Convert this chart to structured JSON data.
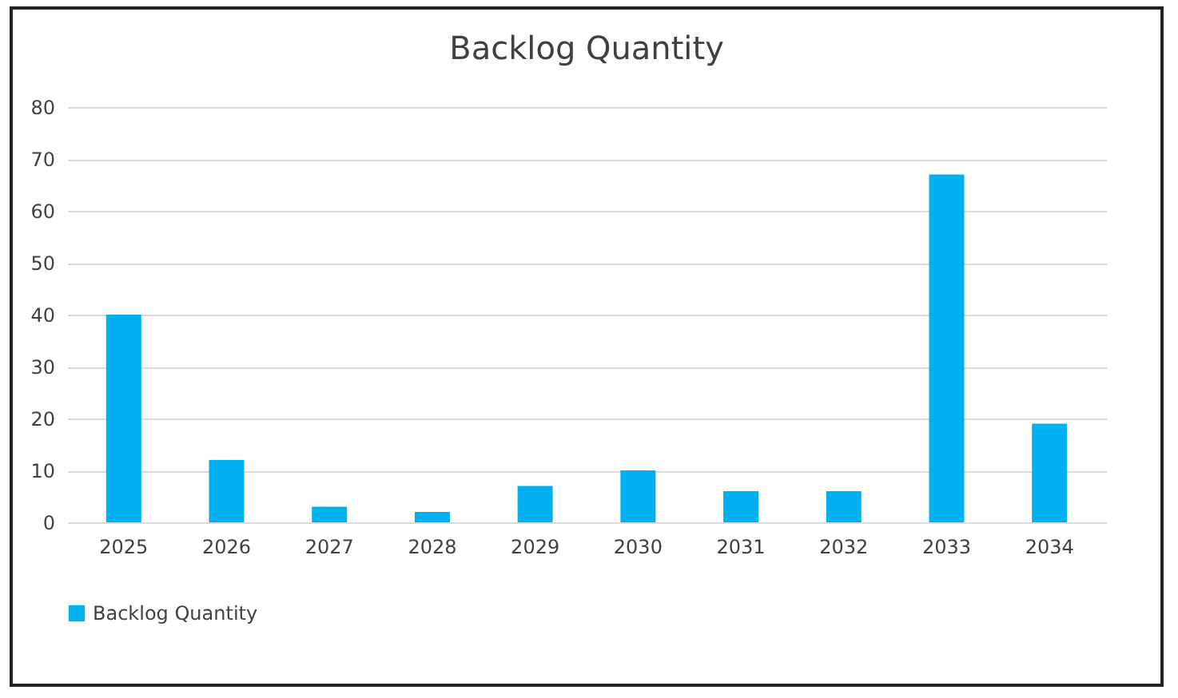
{
  "chart_data": {
    "type": "bar",
    "title": "Backlog Quantity",
    "categories": [
      "2025",
      "2026",
      "2027",
      "2028",
      "2029",
      "2030",
      "2031",
      "2032",
      "2033",
      "2034"
    ],
    "series": [
      {
        "name": "Backlog Quantity",
        "color": "#00b0f0",
        "values": [
          40,
          12,
          3,
          2,
          7,
          10,
          6,
          6,
          67,
          19
        ]
      }
    ],
    "ylim": [
      0,
      80
    ],
    "yticks": [
      0,
      10,
      20,
      30,
      40,
      50,
      60,
      70,
      80
    ],
    "grid": "y",
    "legend": "bottom"
  }
}
